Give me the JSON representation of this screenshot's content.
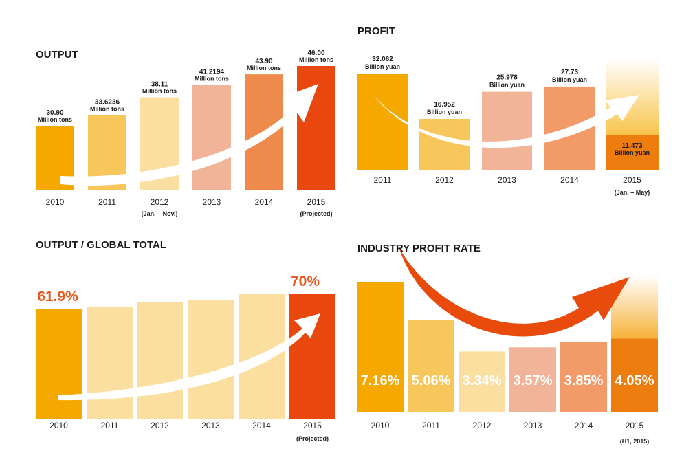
{
  "chart_data": [
    {
      "type": "bar",
      "title": "OUTPUT",
      "categories": [
        "2010",
        "2011",
        "2012",
        "2013",
        "2014",
        "2015"
      ],
      "category_notes": [
        "",
        "",
        "(Jan. – Nov.)",
        "",
        "",
        "(Projected)"
      ],
      "values": [
        30.9,
        33.6236,
        38.11,
        41.2194,
        43.9,
        46.0
      ],
      "value_labels": [
        "30.90",
        "33.6236",
        "38.11",
        "41.2194",
        "43.90",
        "46.00"
      ],
      "unit": "Million tons",
      "colors": [
        "#f4a800",
        "#f8c75c",
        "#fbdfa0",
        "#f2b498",
        "#ee8a4c",
        "#e8470e"
      ]
    },
    {
      "type": "bar",
      "title": "PROFIT",
      "categories": [
        "2011",
        "2012",
        "2013",
        "2014",
        "2015"
      ],
      "category_notes": [
        "",
        "",
        "",
        "",
        "(Jan. – May)"
      ],
      "values": [
        32.062,
        16.952,
        25.978,
        27.73,
        11.473
      ],
      "value_labels": [
        "32.062",
        "16.952",
        "25.978",
        "27.73",
        "11.473"
      ],
      "unit": "Billion yuan",
      "colors": [
        "#f4a800",
        "#f8c75c",
        "#f2b498",
        "#f29a68",
        "#ee7d10"
      ]
    },
    {
      "type": "bar",
      "title": "OUTPUT / GLOBAL TOTAL",
      "categories": [
        "2010",
        "2011",
        "2012",
        "2013",
        "2014",
        "2015"
      ],
      "category_notes": [
        "",
        "",
        "",
        "",
        "",
        "(Projected)"
      ],
      "values": [
        61.9,
        null,
        null,
        null,
        null,
        70
      ],
      "value_labels": [
        "61.9%",
        "",
        "",
        "",
        "",
        "70%"
      ],
      "colors": [
        "#f4a800",
        "#fbdfa0",
        "#fbdfa0",
        "#fbdfa0",
        "#fbdfa0",
        "#e8470e"
      ],
      "label_colors": [
        "#e55a1c",
        "",
        "",
        "",
        "",
        "#e55a1c"
      ]
    },
    {
      "type": "bar",
      "title": "INDUSTRY PROFIT RATE",
      "categories": [
        "2010",
        "2011",
        "2012",
        "2013",
        "2014",
        "2015"
      ],
      "category_notes": [
        "",
        "",
        "",
        "",
        "",
        "(H1, 2015)"
      ],
      "values": [
        7.16,
        5.06,
        3.34,
        3.57,
        3.85,
        4.05
      ],
      "value_labels": [
        "7.16%",
        "5.06%",
        "3.34%",
        "3.57%",
        "3.85%",
        "4.05%"
      ],
      "colors": [
        "#f4a800",
        "#f8c75c",
        "#fbdfa0",
        "#f2b498",
        "#f29a68",
        "#ee7d10"
      ]
    }
  ]
}
